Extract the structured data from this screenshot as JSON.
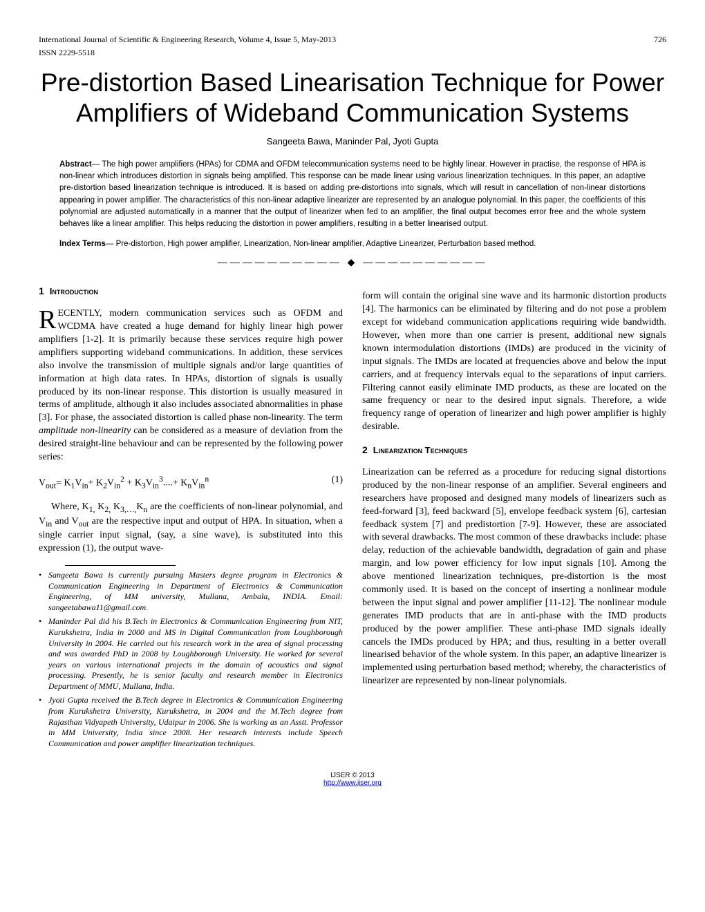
{
  "header": {
    "journal": "International Journal of Scientific & Engineering Research, Volume 4, Issue 5, May-2013",
    "page_number": "726",
    "issn": "ISSN 2229-5518"
  },
  "title": "Pre-distortion Based Linearisation Technique for Power Amplifiers of Wideband Communication Systems",
  "authors": "Sangeeta Bawa, Maninder Pal, Jyoti Gupta",
  "abstract_label": "Abstract",
  "abstract_text": "— The high power amplifiers (HPAs) for CDMA and OFDM telecommunication systems need to be highly linear. However in practise, the response of HPA is non-linear which introduces distortion in signals being amplified. This response can be made linear using various linearization techniques. In this paper, an adaptive pre-distortion based linearization technique is introduced. It is based on adding pre-distortions into signals, which will result in cancellation of non-linear distortions appearing in power amplifier. The characteristics of this non-linear adaptive linearizer are represented by an analogue polynomial. In this paper, the coefficients of this polynomial are adjusted automatically in a manner that the output of linearizer when fed to an amplifier, the final output becomes error free and the whole system behaves like a linear amplifier. This helps reducing the distortion in power amplifiers, resulting in a better linearised output.",
  "index_terms_label": "Index Terms",
  "index_terms_text": "— Pre-distortion, High power amplifier, Linearization, Non-linear amplifier, Adaptive Linearizer, Perturbation based method.",
  "divider": "——————————   ◆   ——————————",
  "section1": {
    "num": "1",
    "title": "Introduction",
    "dropcap": "R",
    "p1_rest": "ECENTLY, modern communication services such as OFDM and WCDMA have created a huge demand for highly linear high power amplifiers [1-2]. It is primarily because these services require high power amplifiers supporting wideband communications. In addition, these services also involve the transmission of multiple signals and/or large quantities of information at high data rates. In HPAs, distortion of signals is usually produced by its non-linear response. This distortion is usually measured in terms of amplitude, although it also includes associated abnormalities in phase [3]. For phase, the associated distortion is called phase non-linearity. The term ",
    "p1_italic": "amplitude non-linearity",
    "p1_tail": " can be considered as a measure of deviation from the desired straight-line behaviour and can be represented by the following power series:",
    "equation": "Vout= K1Vin+ K2Vin2 + K3Vin3....+ KnVinn",
    "equation_num": "(1)",
    "p2": "Where, K1, K2, K3,…,Kn are the coefficients of non-linear polynomial, and Vin and Vout are the respective input and output of HPA. In situation, when a single carrier input signal, (say, a sine wave), is substituted into this expression (1), the output wave-",
    "p3": "form will contain the original sine wave and its harmonic distortion products [4]. The harmonics can be eliminated by filtering and do not pose a problem except for wideband communication applications requiring wide bandwidth. However, when more than one carrier is present, additional new signals known intermodulation distortions (IMDs) are produced in the vicinity of input signals. The IMDs are located at frequencies above and below the input carriers, and at frequency intervals equal to the separations of input carriers. Filtering cannot easily eliminate IMD products, as these are located on the same frequency or near to the desired input signals. Therefore, a wide frequency range of operation of linearizer and high power amplifier is highly desirable."
  },
  "section2": {
    "num": "2",
    "title": "Linearization Techniques",
    "p1": "Linearization can be referred as a procedure for reducing signal distortions produced by the non-linear response of an amplifier. Several engineers and researchers have proposed and designed many models of linearizers such as feed-forward [3], feed backward [5], envelope feedback system [6], cartesian feedback system [7] and predistortion [7-9]. However, these are associated with several drawbacks. The most common of these drawbacks include: phase delay, reduction of the achievable bandwidth, degradation of gain and phase margin, and low power efficiency for low input signals [10]. Among the above mentioned linearization techniques, pre-distortion is the most commonly used. It is based on the concept of inserting a nonlinear module between the input signal and power amplifier [11-12]. The nonlinear module generates IMD products that are in anti-phase with the IMD products produced by the power amplifier. These anti-phase IMD signals ideally cancels the IMDs produced by HPA; and thus, resulting in a better overall linearised behavior of the whole system. In this paper, an adaptive linearizer is implemented using perturbation based method; whereby, the characteristics of linearizer are represented by non-linear polynomials."
  },
  "footnotes": {
    "n1": "Sangeeta Bawa is currently pursuing Masters degree program in Electronics & Communication Engineering in Department of Electronics & Communication Engineering, of MM university, Mullana, Ambala, INDIA. Email: sangeetabawa11@gmail.com.",
    "n2": "Maninder Pal did his B.Tech in Electronics & Communication Engineering from NIT, Kurukshetra, India in 2000 and MS in Digital Communication from Loughborough University in 2004. He carried out his research work in the area of signal processing and was awarded PhD in 2008 by Loughborough University. He worked for several years on various international projects in the domain of acoustics and signal processing. Presently, he is senior faculty and research member in Electronics Department of MMU, Mullana, India.",
    "n3": "Jyoti Gupta received the B.Tech degree in Electronics & Communication Engineering from Kurukshetra University, Kurukshetra, in 2004 and the M.Tech degree from Rajasthan Vidyapeth University, Udaipur in 2006. She is working as an Asstt. Professor in MM University, India since 2008. Her research interests include Speech Communication and power amplifier linearization techniques."
  },
  "footer": {
    "copyright": "IJSER © 2013",
    "url": "http://www.ijser.org"
  }
}
